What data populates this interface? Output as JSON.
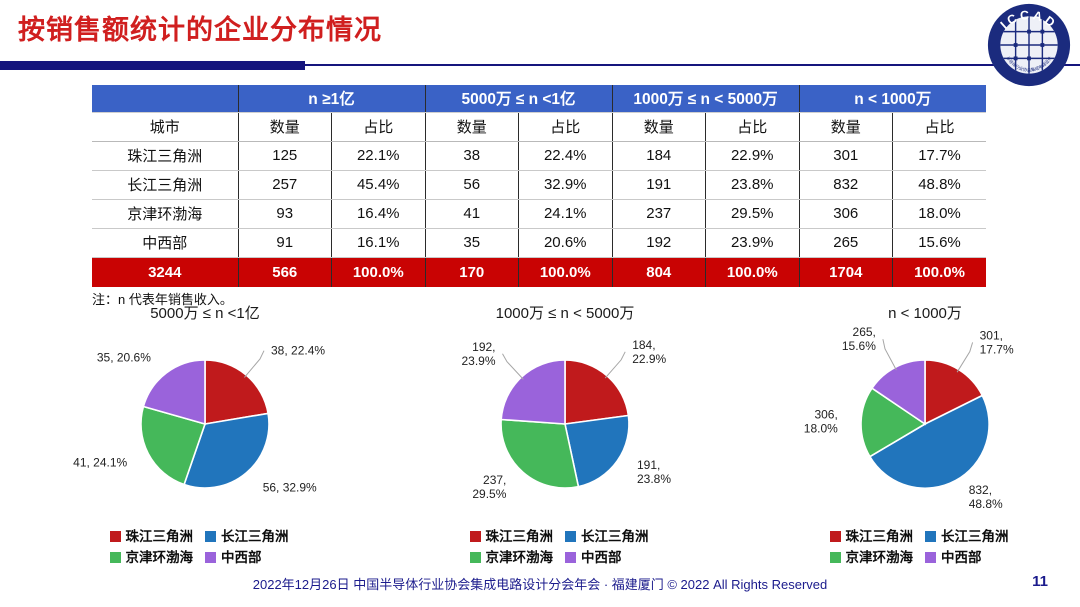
{
  "page": {
    "title": "按销售额统计的企业分布情况",
    "note": "注：n 代表年销售收入。",
    "footer": "2022年12月26日 中国半导体行业协会集成电路设计分会年会 · 福建厦门 © 2022 All Rights Reserved",
    "page_number": "11",
    "logo_text": "ICCAD",
    "logo_ring_text": "中国半导体行业协会集成电路设计分会"
  },
  "colors": {
    "title_red": "#D01F1F",
    "navy": "#15157D",
    "header_blue": "#3A62C6",
    "total_red": "#C90303",
    "footer_navy": "#1B1B8C",
    "logo_navy": "#1B2B7E"
  },
  "table": {
    "city_header": "城市",
    "col_groups": [
      "n ≥1亿",
      "5000万 ≤ n <1亿",
      "1000万 ≤ n < 5000万",
      "n < 1000万"
    ],
    "sub_headers": [
      "数量",
      "占比"
    ],
    "rows": [
      {
        "city": "珠江三角洲",
        "cells": [
          "125",
          "22.1%",
          "38",
          "22.4%",
          "184",
          "22.9%",
          "301",
          "17.7%"
        ]
      },
      {
        "city": "长江三角洲",
        "cells": [
          "257",
          "45.4%",
          "56",
          "32.9%",
          "191",
          "23.8%",
          "832",
          "48.8%"
        ]
      },
      {
        "city": "京津环渤海",
        "cells": [
          "93",
          "16.4%",
          "41",
          "24.1%",
          "237",
          "29.5%",
          "306",
          "18.0%"
        ]
      },
      {
        "city": "中西部",
        "cells": [
          "91",
          "16.1%",
          "35",
          "20.6%",
          "192",
          "23.9%",
          "265",
          "15.6%"
        ]
      }
    ],
    "total_row": {
      "city": "3244",
      "cells": [
        "566",
        "100.0%",
        "170",
        "100.0%",
        "804",
        "100.0%",
        "1704",
        "100.0%"
      ]
    }
  },
  "chart_data": [
    {
      "type": "pie",
      "title": "5000万 ≤ n <1亿",
      "labels": [
        "珠江三角洲",
        "长江三角洲",
        "京津环渤海",
        "中西部"
      ],
      "values": [
        38,
        56,
        41,
        35
      ],
      "pcts": [
        "22.4%",
        "32.9%",
        "24.1%",
        "20.6%"
      ],
      "colors": [
        "#C01A1C",
        "#2175BC",
        "#45B85A",
        "#9A63DB"
      ],
      "start_angle": "top",
      "direction": "clockwise",
      "two_line_labels": false,
      "leaders": [
        true,
        false,
        false,
        false
      ],
      "legend_position": "bottom"
    },
    {
      "type": "pie",
      "title": "1000万 ≤ n < 5000万",
      "labels": [
        "珠江三角洲",
        "长江三角洲",
        "京津环渤海",
        "中西部"
      ],
      "values": [
        184,
        191,
        237,
        192
      ],
      "pcts": [
        "22.9%",
        "23.8%",
        "29.5%",
        "23.9%"
      ],
      "colors": [
        "#C01A1C",
        "#2175BC",
        "#45B85A",
        "#9A63DB"
      ],
      "start_angle": "top",
      "direction": "clockwise",
      "two_line_labels": true,
      "leaders": [
        true,
        false,
        false,
        true
      ],
      "legend_position": "bottom"
    },
    {
      "type": "pie",
      "title": "n < 1000万",
      "labels": [
        "珠江三角洲",
        "长江三角洲",
        "京津环渤海",
        "中西部"
      ],
      "values": [
        301,
        832,
        306,
        265
      ],
      "pcts": [
        "17.7%",
        "48.8%",
        "18.0%",
        "15.6%"
      ],
      "colors": [
        "#C01A1C",
        "#2175BC",
        "#45B85A",
        "#9A63DB"
      ],
      "start_angle": "top",
      "direction": "clockwise",
      "two_line_labels": true,
      "leaders": [
        true,
        false,
        false,
        true
      ],
      "legend_position": "bottom"
    }
  ]
}
